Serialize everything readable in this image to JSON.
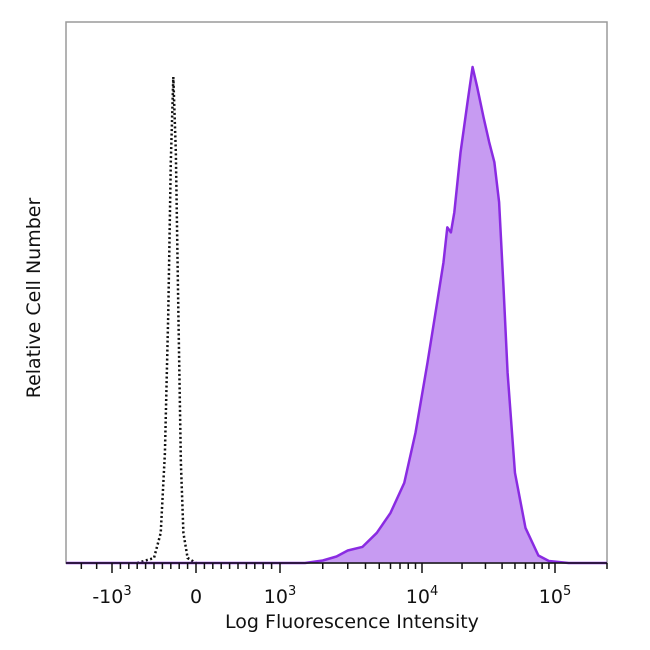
{
  "chart_data": {
    "type": "area",
    "xlabel": "Log Fluorescence Intensity",
    "ylabel": "Relative Cell Number",
    "x_scale": "biexponential",
    "xlim": [
      -4000,
      200000
    ],
    "ylim": [
      0,
      1.0
    ],
    "grid": false,
    "legend": "none",
    "x_ticks": [
      {
        "value": -1000,
        "label": "-10",
        "exponent": "3"
      },
      {
        "value": 0,
        "label": "0",
        "exponent": ""
      },
      {
        "value": 1000,
        "label": "10",
        "exponent": "3"
      },
      {
        "value": 10000,
        "label": "10",
        "exponent": "4"
      },
      {
        "value": 100000,
        "label": "10",
        "exponent": "5"
      }
    ],
    "series": [
      {
        "style": "dotted-outline",
        "color": "#111111",
        "points": [
          {
            "x": -700,
            "y": 0.0
          },
          {
            "x": -500,
            "y": 0.01
          },
          {
            "x": -420,
            "y": 0.06
          },
          {
            "x": -370,
            "y": 0.22
          },
          {
            "x": -330,
            "y": 0.5
          },
          {
            "x": -300,
            "y": 0.8
          },
          {
            "x": -270,
            "y": 0.97
          },
          {
            "x": -240,
            "y": 0.82
          },
          {
            "x": -210,
            "y": 0.5
          },
          {
            "x": -180,
            "y": 0.2
          },
          {
            "x": -150,
            "y": 0.06
          },
          {
            "x": -100,
            "y": 0.01
          },
          {
            "x": 0,
            "y": 0.0
          }
        ]
      },
      {
        "style": "filled",
        "color": "#8a2be2",
        "fill": "#c79bf2",
        "points": [
          {
            "x": -4000,
            "y": 0.0
          },
          {
            "x": 1500,
            "y": 0.0
          },
          {
            "x": 2000,
            "y": 0.005
          },
          {
            "x": 2500,
            "y": 0.013
          },
          {
            "x": 3000,
            "y": 0.025
          },
          {
            "x": 3800,
            "y": 0.032
          },
          {
            "x": 4800,
            "y": 0.06
          },
          {
            "x": 6000,
            "y": 0.1
          },
          {
            "x": 7500,
            "y": 0.16
          },
          {
            "x": 9000,
            "y": 0.26
          },
          {
            "x": 11000,
            "y": 0.4
          },
          {
            "x": 13000,
            "y": 0.52
          },
          {
            "x": 14500,
            "y": 0.6
          },
          {
            "x": 15500,
            "y": 0.67
          },
          {
            "x": 16500,
            "y": 0.66
          },
          {
            "x": 17500,
            "y": 0.7
          },
          {
            "x": 19500,
            "y": 0.82
          },
          {
            "x": 22000,
            "y": 0.92
          },
          {
            "x": 24000,
            "y": 0.99
          },
          {
            "x": 26000,
            "y": 0.95
          },
          {
            "x": 29000,
            "y": 0.89
          },
          {
            "x": 32000,
            "y": 0.84
          },
          {
            "x": 35000,
            "y": 0.8
          },
          {
            "x": 38000,
            "y": 0.72
          },
          {
            "x": 41000,
            "y": 0.55
          },
          {
            "x": 44000,
            "y": 0.38
          },
          {
            "x": 50000,
            "y": 0.18
          },
          {
            "x": 60000,
            "y": 0.07
          },
          {
            "x": 75000,
            "y": 0.015
          },
          {
            "x": 90000,
            "y": 0.004
          },
          {
            "x": 120000,
            "y": 0.0
          },
          {
            "x": 200000,
            "y": 0.0
          }
        ]
      }
    ]
  }
}
